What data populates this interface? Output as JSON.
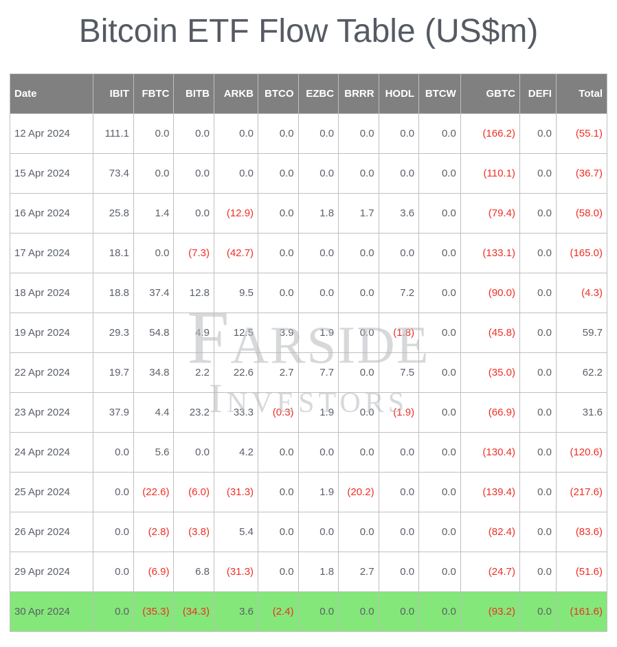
{
  "title": "Bitcoin ETF Flow Table (US$m)",
  "watermark": {
    "line1": "Farside",
    "line2": "Investors"
  },
  "colors": {
    "header_bg": "#808080",
    "header_text": "#ffffff",
    "border": "#bfbfbf",
    "cell_text": "#5a5f68",
    "negative_text": "#ee2e24",
    "highlight_bg": "#84e77a",
    "title_text": "#555a63",
    "watermark_text": "#b5b9bd"
  },
  "table": {
    "columns": [
      "Date",
      "IBIT",
      "FBTC",
      "BITB",
      "ARKB",
      "BTCO",
      "EZBC",
      "BRRR",
      "HODL",
      "BTCW",
      "GBTC",
      "DEFI",
      "Total"
    ],
    "col_widths": [
      "110px",
      "53px",
      "53px",
      "53px",
      "58px",
      "53px",
      "53px",
      "53px",
      "53px",
      "55px",
      "78px",
      "48px",
      "67px"
    ],
    "rows": [
      {
        "highlight": false,
        "cells": [
          "12 Apr 2024",
          "111.1",
          "0.0",
          "0.0",
          "0.0",
          "0.0",
          "0.0",
          "0.0",
          "0.0",
          "0.0",
          "(166.2)",
          "0.0",
          "(55.1)"
        ]
      },
      {
        "highlight": false,
        "cells": [
          "15 Apr 2024",
          "73.4",
          "0.0",
          "0.0",
          "0.0",
          "0.0",
          "0.0",
          "0.0",
          "0.0",
          "0.0",
          "(110.1)",
          "0.0",
          "(36.7)"
        ]
      },
      {
        "highlight": false,
        "cells": [
          "16 Apr 2024",
          "25.8",
          "1.4",
          "0.0",
          "(12.9)",
          "0.0",
          "1.8",
          "1.7",
          "3.6",
          "0.0",
          "(79.4)",
          "0.0",
          "(58.0)"
        ]
      },
      {
        "highlight": false,
        "cells": [
          "17 Apr 2024",
          "18.1",
          "0.0",
          "(7.3)",
          "(42.7)",
          "0.0",
          "0.0",
          "0.0",
          "0.0",
          "0.0",
          "(133.1)",
          "0.0",
          "(165.0)"
        ]
      },
      {
        "highlight": false,
        "cells": [
          "18 Apr 2024",
          "18.8",
          "37.4",
          "12.8",
          "9.5",
          "0.0",
          "0.0",
          "0.0",
          "7.2",
          "0.0",
          "(90.0)",
          "0.0",
          "(4.3)"
        ]
      },
      {
        "highlight": false,
        "cells": [
          "19 Apr 2024",
          "29.3",
          "54.8",
          "4.9",
          "12.5",
          "3.9",
          "1.9",
          "0.0",
          "(1.8)",
          "0.0",
          "(45.8)",
          "0.0",
          "59.7"
        ]
      },
      {
        "highlight": false,
        "cells": [
          "22 Apr 2024",
          "19.7",
          "34.8",
          "2.2",
          "22.6",
          "2.7",
          "7.7",
          "0.0",
          "7.5",
          "0.0",
          "(35.0)",
          "0.0",
          "62.2"
        ]
      },
      {
        "highlight": false,
        "cells": [
          "23 Apr 2024",
          "37.9",
          "4.4",
          "23.2",
          "33.3",
          "(0.3)",
          "1.9",
          "0.0",
          "(1.9)",
          "0.0",
          "(66.9)",
          "0.0",
          "31.6"
        ]
      },
      {
        "highlight": false,
        "cells": [
          "24 Apr 2024",
          "0.0",
          "5.6",
          "0.0",
          "4.2",
          "0.0",
          "0.0",
          "0.0",
          "0.0",
          "0.0",
          "(130.4)",
          "0.0",
          "(120.6)"
        ]
      },
      {
        "highlight": false,
        "cells": [
          "25 Apr 2024",
          "0.0",
          "(22.6)",
          "(6.0)",
          "(31.3)",
          "0.0",
          "1.9",
          "(20.2)",
          "0.0",
          "0.0",
          "(139.4)",
          "0.0",
          "(217.6)"
        ]
      },
      {
        "highlight": false,
        "cells": [
          "26 Apr 2024",
          "0.0",
          "(2.8)",
          "(3.8)",
          "5.4",
          "0.0",
          "0.0",
          "0.0",
          "0.0",
          "0.0",
          "(82.4)",
          "0.0",
          "(83.6)"
        ]
      },
      {
        "highlight": false,
        "cells": [
          "29 Apr 2024",
          "0.0",
          "(6.9)",
          "6.8",
          "(31.3)",
          "0.0",
          "1.8",
          "2.7",
          "0.0",
          "0.0",
          "(24.7)",
          "0.0",
          "(51.6)"
        ]
      },
      {
        "highlight": true,
        "cells": [
          "30 Apr 2024",
          "0.0",
          "(35.3)",
          "(34.3)",
          "3.6",
          "(2.4)",
          "0.0",
          "0.0",
          "0.0",
          "0.0",
          "(93.2)",
          "0.0",
          "(161.6)"
        ]
      }
    ]
  }
}
